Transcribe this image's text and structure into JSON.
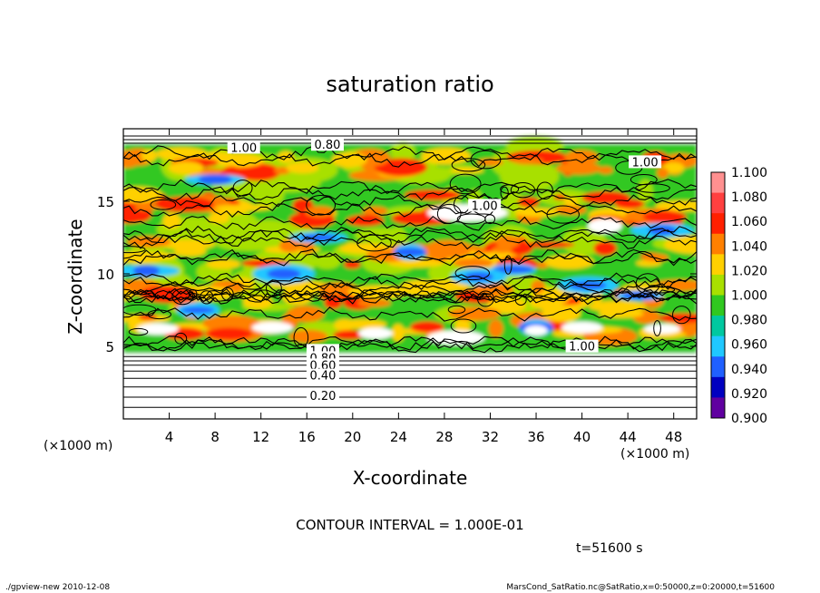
{
  "chart_data": {
    "type": "heatmap",
    "title": "saturation ratio",
    "xlabel": "X-coordinate",
    "ylabel": "Z-coordinate",
    "x_unit_left": "(×1000 m)",
    "x_unit_right": "(×1000 m)",
    "xlim": [
      0,
      50
    ],
    "ylim": [
      0,
      20
    ],
    "x_ticks": [
      4,
      8,
      12,
      16,
      20,
      24,
      28,
      32,
      36,
      40,
      44,
      48
    ],
    "y_ticks": [
      5,
      10,
      15
    ],
    "contour_labels": [
      {
        "text": "1.00",
        "x": 10.5,
        "z": 18.6
      },
      {
        "text": "0.80",
        "x": 17.8,
        "z": 18.8
      },
      {
        "text": "1.00",
        "x": 45.5,
        "z": 17.6
      },
      {
        "text": "1.00",
        "x": 31.5,
        "z": 14.6
      },
      {
        "text": "1.00",
        "x": 40.0,
        "z": 4.9
      },
      {
        "text": "1.00",
        "x": 17.4,
        "z": 4.6
      },
      {
        "text": "0.80",
        "x": 17.4,
        "z": 4.1
      },
      {
        "text": "0.60",
        "x": 17.4,
        "z": 3.6
      },
      {
        "text": "0.40",
        "x": 17.4,
        "z": 2.9
      },
      {
        "text": "0.20",
        "x": 17.4,
        "z": 1.5
      }
    ],
    "contour_interval_text": "CONTOUR INTERVAL = 1.000E-01",
    "time_text": "t=51600 s",
    "colorbar": {
      "levels": [
        "1.100",
        "1.080",
        "1.060",
        "1.040",
        "1.020",
        "1.000",
        "0.980",
        "0.960",
        "0.940",
        "0.920",
        "0.900"
      ],
      "colors": [
        "#ff9090",
        "#ff4040",
        "#ff2000",
        "#ff8000",
        "#ffd000",
        "#a8e000",
        "#30c820",
        "#00c8a0",
        "#20c8ff",
        "#2060ff",
        "#0000c0",
        "#6000a0"
      ]
    }
  },
  "footer": {
    "left": "./gpview-new   2010-12-08",
    "right": "MarsCond_SatRatio.nc@SatRatio,x=0:50000,z=0:20000,t=51600"
  }
}
